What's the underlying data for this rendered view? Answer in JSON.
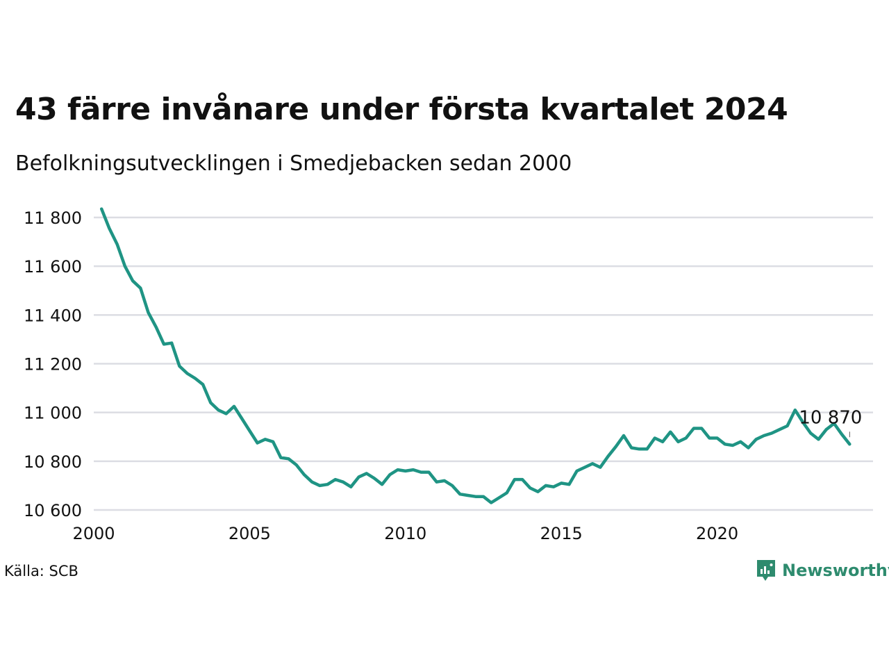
{
  "title": "43 färre invånare under första kvartalet 2024",
  "subtitle": "Befolkningsutvecklingen i Smedjebacken sedan 2000",
  "source": "Källa: SCB",
  "brand": {
    "name": "Newsworthy",
    "icon": "newsworthy-logo-icon",
    "color": "#2e8b6e"
  },
  "colors": {
    "line": "#1f9484",
    "grid": "#dcdde3"
  },
  "chart_data": {
    "type": "line",
    "title": "43 färre invånare under första kvartalet 2024",
    "subtitle": "Befolkningsutvecklingen i Smedjebacken sedan 2000",
    "xlabel": "",
    "ylabel": "",
    "xlim": [
      2000.0,
      2025.0
    ],
    "ylim": [
      10600,
      11800
    ],
    "x_ticks": [
      2000,
      2005,
      2010,
      2015,
      2020
    ],
    "y_ticks": [
      10600,
      10800,
      11000,
      11200,
      11400,
      11600,
      11800
    ],
    "y_tick_labels": [
      "10 600",
      "10 800",
      "11 000",
      "11 200",
      "11 400",
      "11 600",
      "11 800"
    ],
    "grid": true,
    "end_label": "10 870",
    "series": [
      {
        "x": [
          2000.25,
          2000.5,
          2000.75,
          2001.0,
          2001.25,
          2001.5,
          2001.75,
          2002.0,
          2002.25,
          2002.5,
          2002.75,
          2003.0,
          2003.25,
          2003.5,
          2003.75,
          2004.0,
          2004.25,
          2004.5,
          2004.75,
          2005.0,
          2005.25,
          2005.5,
          2005.75,
          2006.0,
          2006.25,
          2006.5,
          2006.75,
          2007.0,
          2007.25,
          2007.5,
          2007.75,
          2008.0,
          2008.25,
          2008.5,
          2008.75,
          2009.0,
          2009.25,
          2009.5,
          2009.75,
          2010.0,
          2010.25,
          2010.5,
          2010.75,
          2011.0,
          2011.25,
          2011.5,
          2011.75,
          2012.0,
          2012.25,
          2012.5,
          2012.75,
          2013.0,
          2013.25,
          2013.5,
          2013.75,
          2014.0,
          2014.25,
          2014.5,
          2014.75,
          2015.0,
          2015.25,
          2015.5,
          2015.75,
          2016.0,
          2016.25,
          2016.5,
          2016.75,
          2017.0,
          2017.25,
          2017.5,
          2017.75,
          2018.0,
          2018.25,
          2018.5,
          2018.75,
          2019.0,
          2019.25,
          2019.5,
          2019.75,
          2020.0,
          2020.25,
          2020.5,
          2020.75,
          2021.0,
          2021.25,
          2021.5,
          2021.75,
          2022.0,
          2022.25,
          2022.5,
          2022.75,
          2023.0,
          2023.25,
          2023.5,
          2023.75,
          2024.0,
          2024.25
        ],
        "values": [
          11835,
          11755,
          11690,
          11600,
          11540,
          11510,
          11410,
          11350,
          11280,
          11285,
          11190,
          11160,
          11140,
          11115,
          11040,
          11010,
          10995,
          11025,
          10975,
          10925,
          10875,
          10890,
          10880,
          10815,
          10810,
          10785,
          10745,
          10715,
          10700,
          10705,
          10725,
          10715,
          10695,
          10735,
          10750,
          10730,
          10705,
          10745,
          10765,
          10760,
          10765,
          10755,
          10755,
          10715,
          10720,
          10700,
          10665,
          10660,
          10655,
          10655,
          10630,
          10650,
          10670,
          10725,
          10725,
          10690,
          10675,
          10700,
          10695,
          10710,
          10705,
          10760,
          10775,
          10790,
          10775,
          10820,
          10860,
          10905,
          10855,
          10850,
          10850,
          10895,
          10880,
          10920,
          10880,
          10895,
          10935,
          10935,
          10895,
          10895,
          10870,
          10865,
          10880,
          10855,
          10890,
          10905,
          10915,
          10930,
          10945,
          11010,
          10960,
          10915,
          10890,
          10930,
          10955,
          10910,
          10870
        ]
      }
    ]
  }
}
